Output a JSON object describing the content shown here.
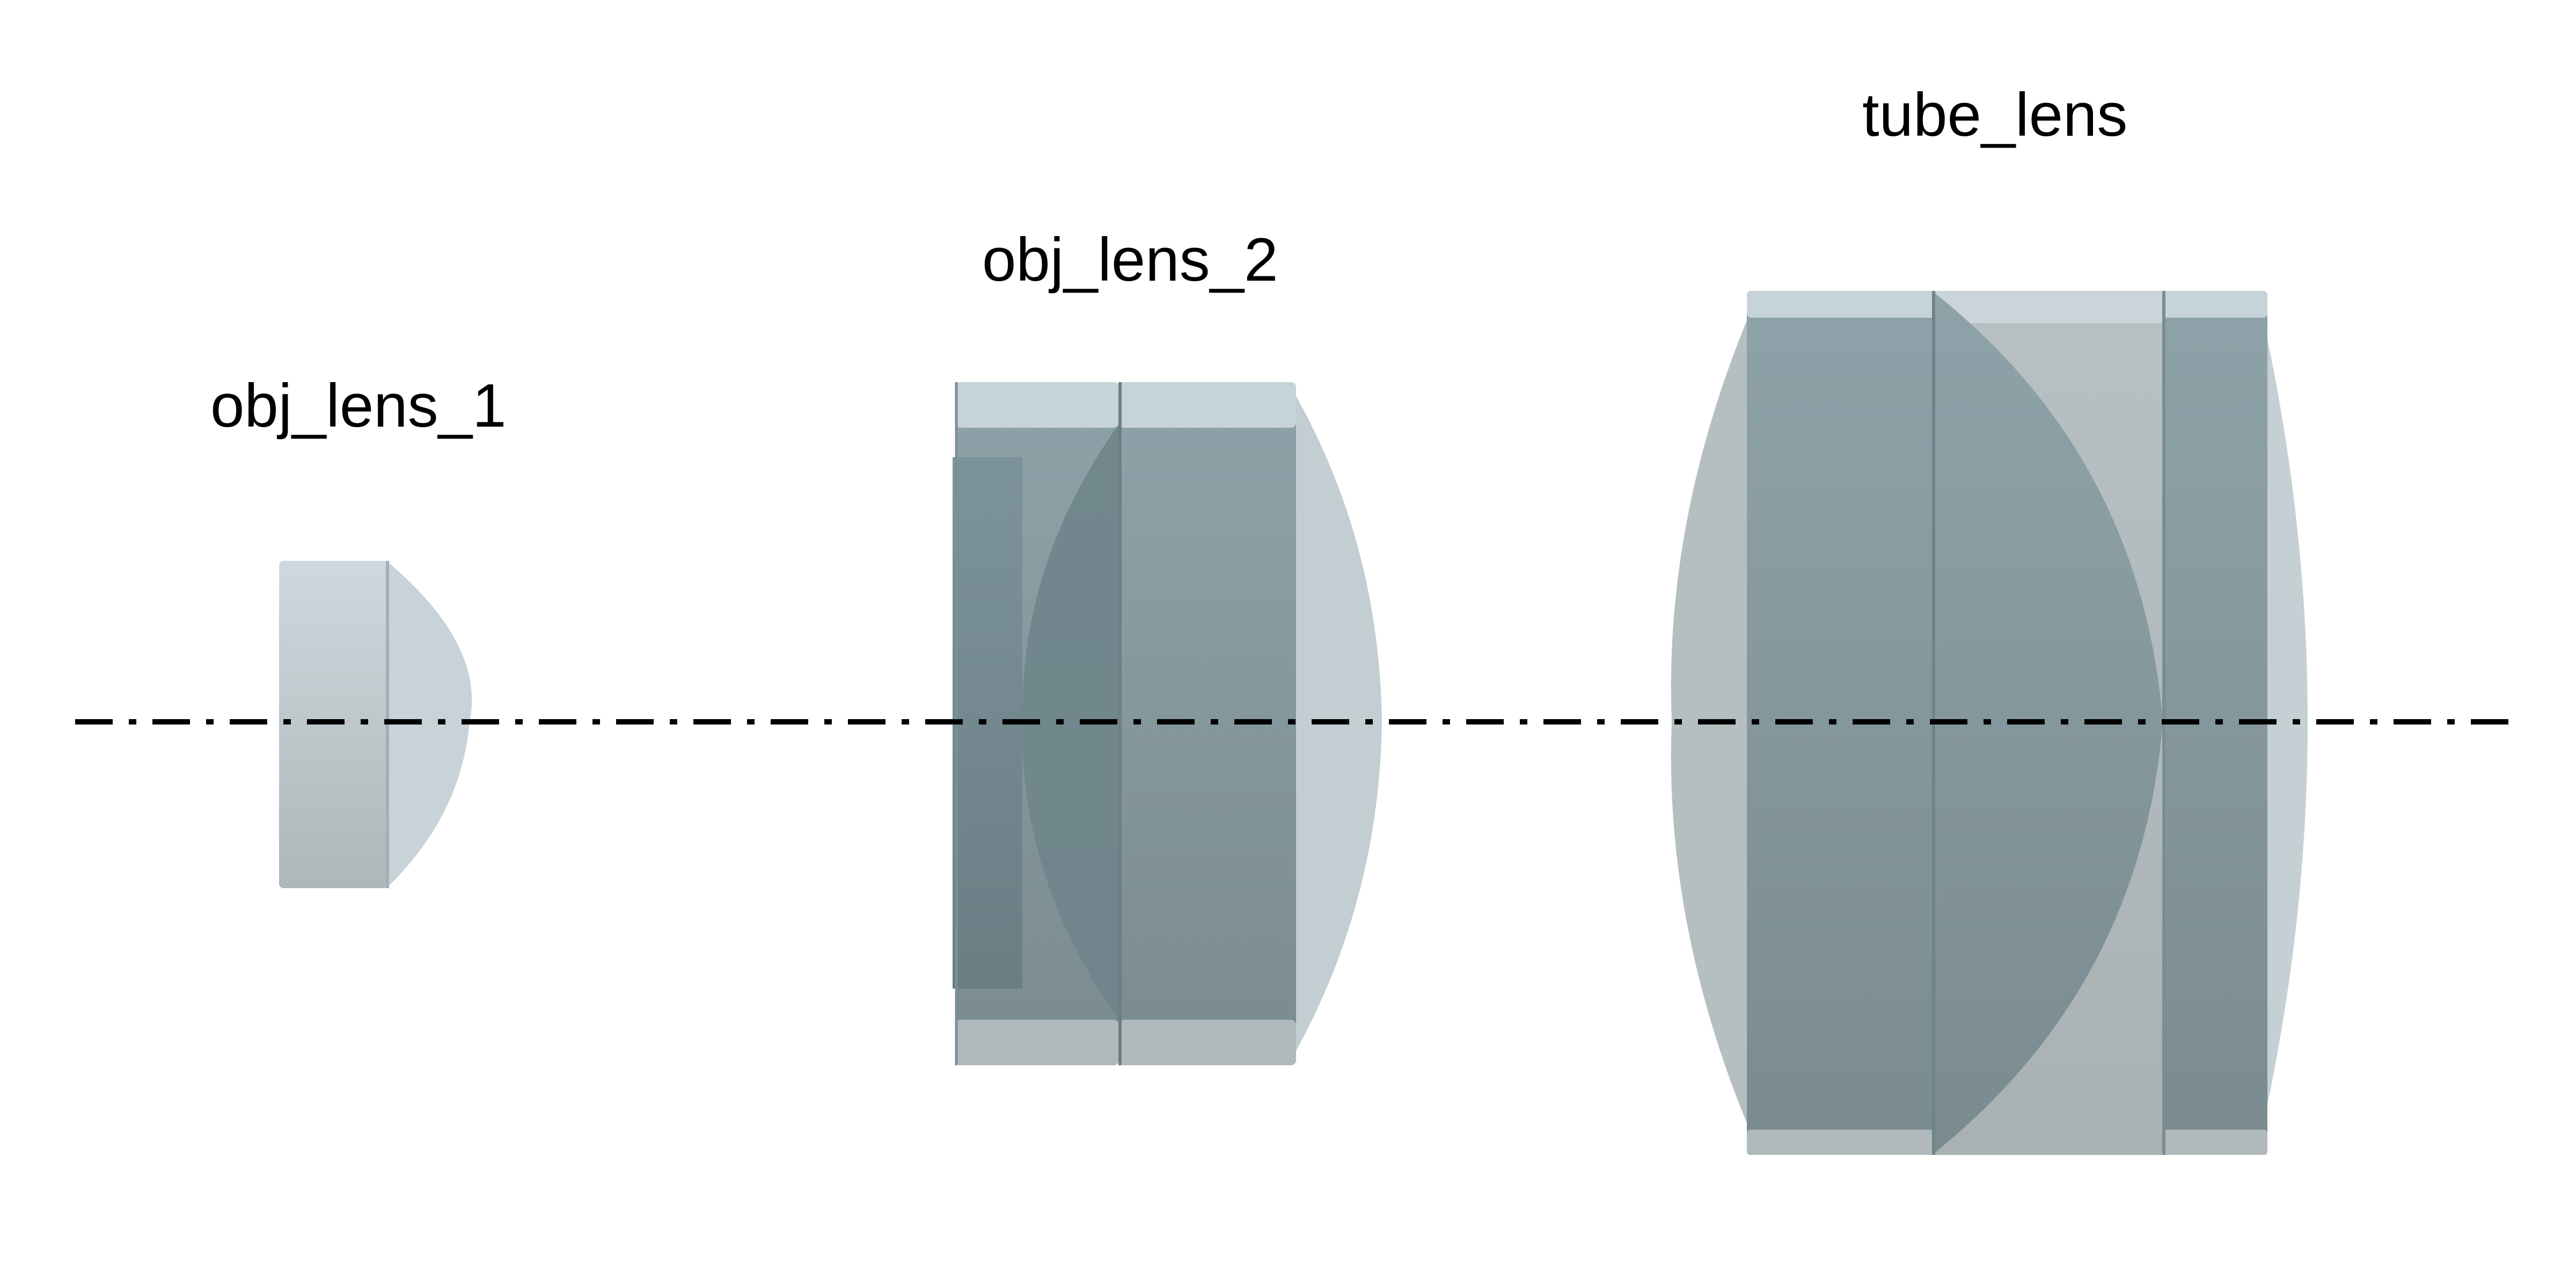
{
  "labels": {
    "obj_lens_1": "obj_lens_1",
    "obj_lens_2": "obj_lens_2",
    "tube_lens": "tube_lens"
  },
  "colors": {
    "glass_light": "#c9d6dc",
    "glass_mid": "#879ba1",
    "glass_dark": "#6d858b",
    "glass_grey": "#b3bbbd",
    "axis": "#000000"
  }
}
